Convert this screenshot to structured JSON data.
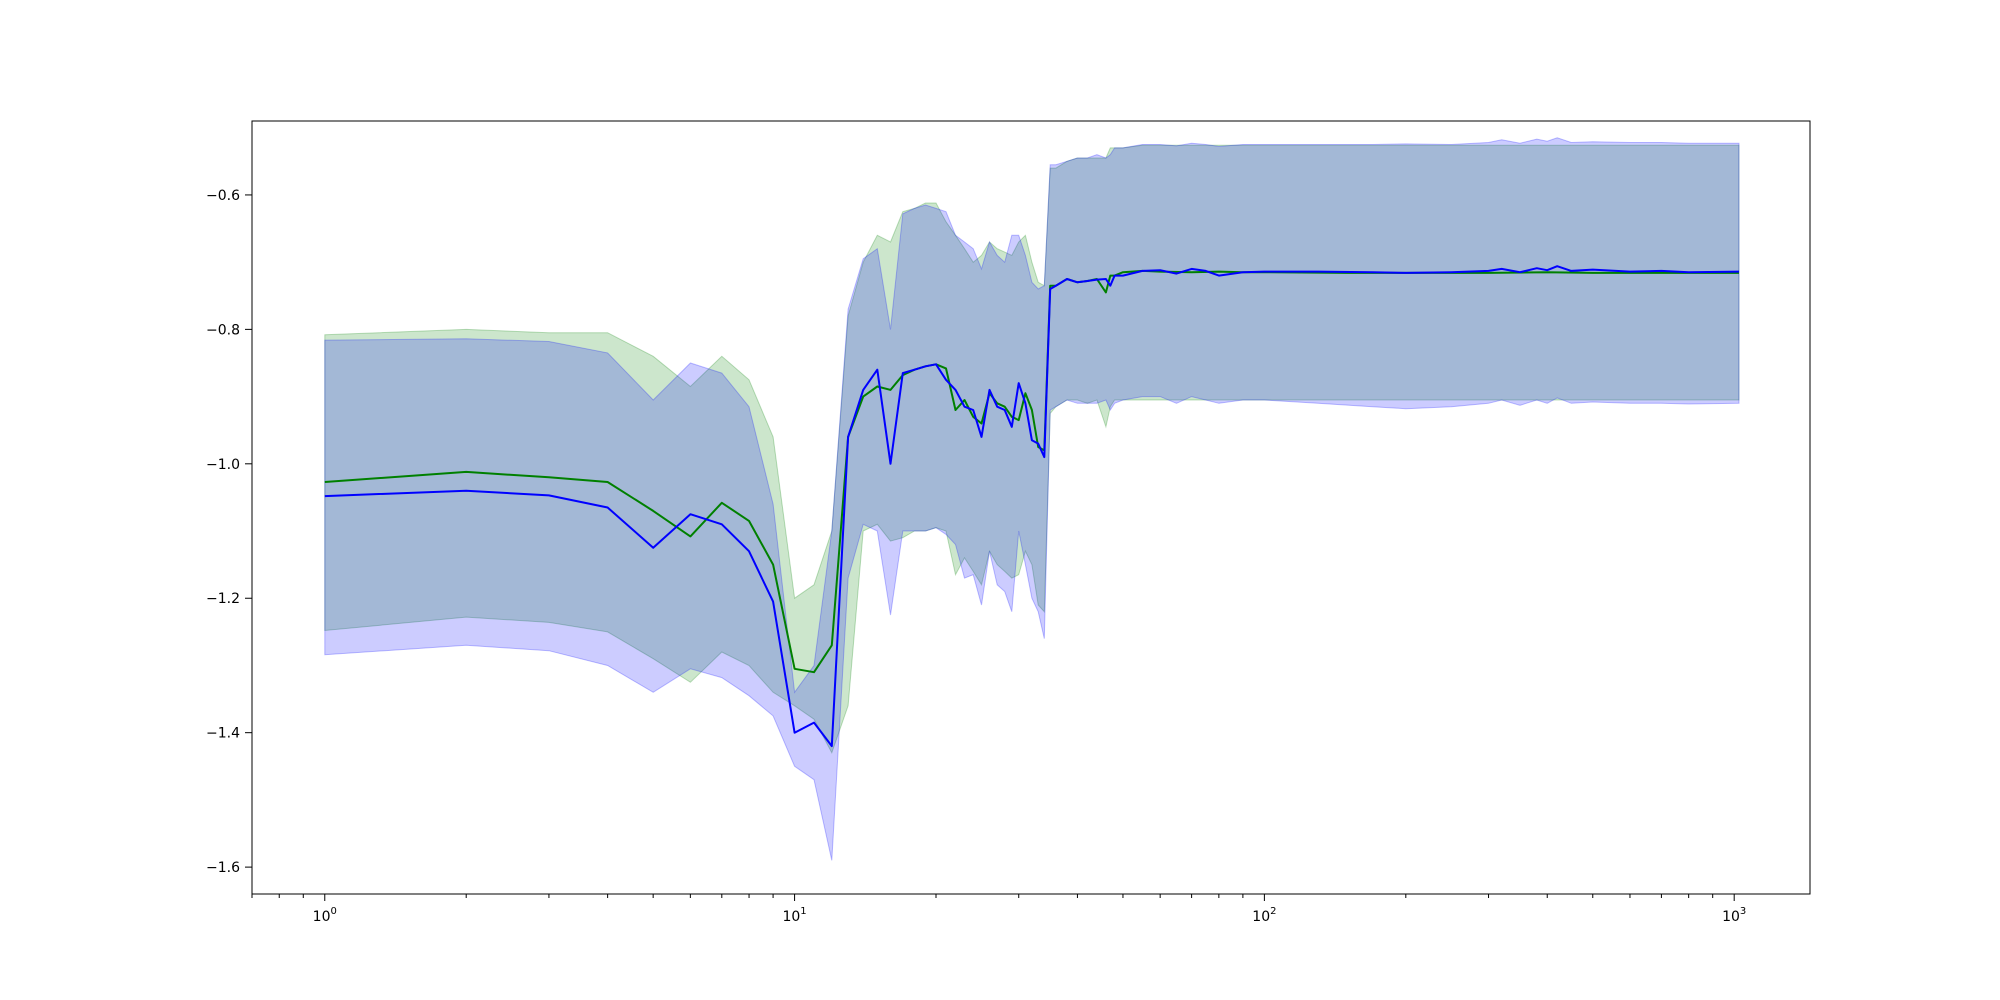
{
  "chart_data": {
    "type": "line",
    "title": "",
    "xlabel": "",
    "ylabel": "",
    "xscale": "log",
    "xlim": [
      0.7,
      1450
    ],
    "ylim": [
      -1.64,
      -0.49
    ],
    "grid": false,
    "legend": "none",
    "x_ticks": [
      {
        "value": 1,
        "base": "10",
        "exp": "0"
      },
      {
        "value": 10,
        "base": "10",
        "exp": "1"
      },
      {
        "value": 100,
        "base": "10",
        "exp": "2"
      },
      {
        "value": 1000,
        "base": "10",
        "exp": "3"
      }
    ],
    "y_ticks": [
      {
        "value": -0.6,
        "label": "−0.6"
      },
      {
        "value": -0.8,
        "label": "−0.8"
      },
      {
        "value": -1.0,
        "label": "−1.0"
      },
      {
        "value": -1.2,
        "label": "−1.2"
      },
      {
        "value": -1.4,
        "label": "−1.4"
      },
      {
        "value": -1.6,
        "label": "−1.6"
      }
    ],
    "series": [
      {
        "color": "#008000",
        "band_color": "#008000",
        "band_opacity": 0.2,
        "x": [
          1,
          2,
          3,
          4,
          5,
          6,
          7,
          8,
          9,
          10,
          11,
          12,
          13,
          14,
          15,
          16,
          17,
          18,
          19,
          20,
          21,
          22,
          23,
          24,
          25,
          26,
          27,
          28,
          29,
          30,
          31,
          32,
          33,
          34,
          35,
          36,
          38,
          40,
          42,
          44,
          46,
          47,
          48,
          50,
          55,
          60,
          70,
          80,
          90,
          100,
          150,
          200,
          300,
          400,
          500,
          700,
          1024
        ],
        "mean": [
          -1.027,
          -1.012,
          -1.02,
          -1.027,
          -1.07,
          -1.108,
          -1.058,
          -1.085,
          -1.15,
          -1.305,
          -1.31,
          -1.27,
          -0.96,
          -0.9,
          -0.885,
          -0.89,
          -0.868,
          -0.86,
          -0.855,
          -0.852,
          -0.858,
          -0.92,
          -0.905,
          -0.93,
          -0.94,
          -0.895,
          -0.91,
          -0.915,
          -0.93,
          -0.935,
          -0.895,
          -0.92,
          -0.975,
          -0.98,
          -0.735,
          -0.735,
          -0.725,
          -0.73,
          -0.728,
          -0.725,
          -0.745,
          -0.72,
          -0.72,
          -0.715,
          -0.713,
          -0.714,
          -0.715,
          -0.714,
          -0.715,
          -0.715,
          -0.716,
          -0.716,
          -0.716,
          -0.715,
          -0.716,
          -0.716,
          -0.716
        ],
        "upper": [
          -0.808,
          -0.8,
          -0.805,
          -0.805,
          -0.84,
          -0.885,
          -0.84,
          -0.875,
          -0.96,
          -1.2,
          -1.18,
          -1.1,
          -0.78,
          -0.7,
          -0.66,
          -0.67,
          -0.625,
          -0.62,
          -0.612,
          -0.612,
          -0.64,
          -0.66,
          -0.68,
          -0.7,
          -0.69,
          -0.67,
          -0.68,
          -0.685,
          -0.69,
          -0.67,
          -0.66,
          -0.7,
          -0.73,
          -0.735,
          -0.56,
          -0.56,
          -0.55,
          -0.545,
          -0.545,
          -0.545,
          -0.545,
          -0.53,
          -0.53,
          -0.53,
          -0.526,
          -0.526,
          -0.526,
          -0.526,
          -0.526,
          -0.526,
          -0.526,
          -0.526,
          -0.526,
          -0.526,
          -0.526,
          -0.526,
          -0.526
        ],
        "lower": [
          -1.248,
          -1.228,
          -1.236,
          -1.25,
          -1.29,
          -1.325,
          -1.28,
          -1.3,
          -1.34,
          -1.36,
          -1.38,
          -1.43,
          -1.36,
          -1.1,
          -1.09,
          -1.115,
          -1.11,
          -1.1,
          -1.1,
          -1.095,
          -1.1,
          -1.165,
          -1.14,
          -1.16,
          -1.18,
          -1.13,
          -1.15,
          -1.16,
          -1.17,
          -1.165,
          -1.13,
          -1.15,
          -1.21,
          -1.22,
          -0.925,
          -0.915,
          -0.905,
          -0.905,
          -0.91,
          -0.905,
          -0.945,
          -0.915,
          -0.905,
          -0.905,
          -0.905,
          -0.905,
          -0.905,
          -0.905,
          -0.905,
          -0.905,
          -0.905,
          -0.905,
          -0.905,
          -0.905,
          -0.905,
          -0.905,
          -0.905
        ]
      },
      {
        "color": "#0000ff",
        "band_color": "#0000ff",
        "band_opacity": 0.2,
        "x": [
          1,
          2,
          3,
          4,
          5,
          6,
          7,
          8,
          9,
          10,
          11,
          12,
          13,
          14,
          15,
          16,
          17,
          18,
          19,
          20,
          21,
          22,
          23,
          24,
          25,
          26,
          27,
          28,
          29,
          30,
          31,
          32,
          33,
          34,
          35,
          36,
          38,
          40,
          42,
          44,
          46,
          47,
          48,
          50,
          55,
          60,
          65,
          70,
          75,
          80,
          90,
          100,
          130,
          170,
          200,
          250,
          300,
          320,
          350,
          380,
          400,
          420,
          450,
          500,
          600,
          700,
          800,
          1024
        ],
        "mean": [
          -1.048,
          -1.04,
          -1.047,
          -1.065,
          -1.125,
          -1.075,
          -1.09,
          -1.13,
          -1.205,
          -1.4,
          -1.385,
          -1.42,
          -0.96,
          -0.89,
          -0.86,
          -1.0,
          -0.865,
          -0.86,
          -0.855,
          -0.852,
          -0.875,
          -0.89,
          -0.915,
          -0.92,
          -0.96,
          -0.89,
          -0.915,
          -0.92,
          -0.945,
          -0.88,
          -0.91,
          -0.965,
          -0.97,
          -0.99,
          -0.74,
          -0.735,
          -0.725,
          -0.73,
          -0.728,
          -0.726,
          -0.725,
          -0.735,
          -0.72,
          -0.72,
          -0.713,
          -0.712,
          -0.717,
          -0.71,
          -0.713,
          -0.72,
          -0.715,
          -0.714,
          -0.714,
          -0.715,
          -0.716,
          -0.715,
          -0.713,
          -0.71,
          -0.715,
          -0.709,
          -0.712,
          -0.706,
          -0.713,
          -0.711,
          -0.714,
          -0.713,
          -0.715,
          -0.714
        ],
        "upper": [
          -0.816,
          -0.814,
          -0.818,
          -0.835,
          -0.905,
          -0.85,
          -0.865,
          -0.915,
          -1.06,
          -1.34,
          -1.3,
          -1.1,
          -0.77,
          -0.695,
          -0.68,
          -0.8,
          -0.628,
          -0.62,
          -0.615,
          -0.62,
          -0.625,
          -0.66,
          -0.67,
          -0.68,
          -0.71,
          -0.67,
          -0.69,
          -0.7,
          -0.66,
          -0.66,
          -0.69,
          -0.73,
          -0.74,
          -0.735,
          -0.555,
          -0.555,
          -0.55,
          -0.545,
          -0.545,
          -0.54,
          -0.545,
          -0.54,
          -0.53,
          -0.53,
          -0.525,
          -0.525,
          -0.527,
          -0.523,
          -0.525,
          -0.528,
          -0.525,
          -0.525,
          -0.525,
          -0.525,
          -0.524,
          -0.525,
          -0.522,
          -0.518,
          -0.523,
          -0.517,
          -0.52,
          -0.515,
          -0.522,
          -0.521,
          -0.522,
          -0.522,
          -0.523,
          -0.523
        ],
        "lower": [
          -1.284,
          -1.27,
          -1.278,
          -1.3,
          -1.34,
          -1.305,
          -1.318,
          -1.345,
          -1.375,
          -1.45,
          -1.47,
          -1.59,
          -1.17,
          -1.09,
          -1.1,
          -1.225,
          -1.1,
          -1.1,
          -1.1,
          -1.095,
          -1.105,
          -1.12,
          -1.17,
          -1.165,
          -1.21,
          -1.13,
          -1.18,
          -1.19,
          -1.22,
          -1.1,
          -1.15,
          -1.2,
          -1.22,
          -1.26,
          -0.92,
          -0.915,
          -0.905,
          -0.91,
          -0.91,
          -0.91,
          -0.905,
          -0.92,
          -0.91,
          -0.905,
          -0.9,
          -0.9,
          -0.91,
          -0.9,
          -0.905,
          -0.91,
          -0.905,
          -0.905,
          -0.91,
          -0.915,
          -0.918,
          -0.915,
          -0.91,
          -0.905,
          -0.913,
          -0.905,
          -0.91,
          -0.902,
          -0.91,
          -0.908,
          -0.91,
          -0.91,
          -0.911,
          -0.91
        ]
      }
    ]
  }
}
